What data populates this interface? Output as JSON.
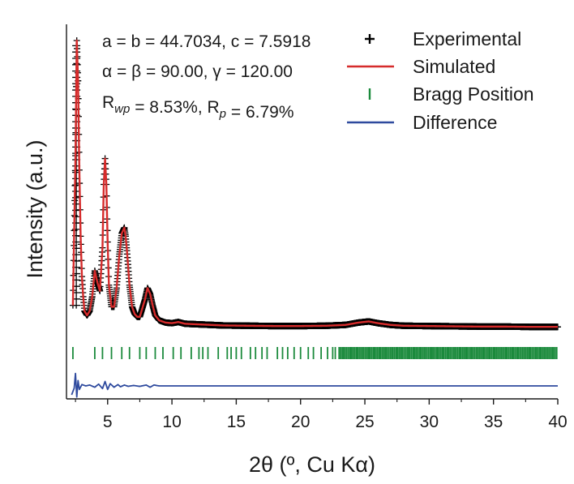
{
  "chart_data": {
    "type": "line",
    "xlabel": "2θ (º, Cu Kα)",
    "ylabel": "Intensity (a.u.)",
    "xlim": [
      1.8,
      40
    ],
    "xticks": [
      5,
      10,
      15,
      20,
      25,
      30,
      35,
      40
    ],
    "yticks": false,
    "grid": false,
    "legend": {
      "position": "top-right",
      "entries": [
        {
          "label": "Experimental",
          "marker": "plus",
          "color": "#000000"
        },
        {
          "label": "Simulated",
          "marker": "line",
          "color": "#d62b2b"
        },
        {
          "label": "Bragg Position",
          "marker": "vbar",
          "color": "#1b8a3c"
        },
        {
          "label": "Difference",
          "marker": "line",
          "color": "#2e4a9e"
        }
      ]
    },
    "parameters": {
      "line1": "a = b = 44.7034, c = 7.5918",
      "line2": "α = β = 90.00, γ = 120.00",
      "line3": "R_wp = 8.53%, R_p = 6.79%"
    },
    "series": [
      {
        "name": "Simulated",
        "color": "#d62b2b",
        "x": [
          2.3,
          2.5,
          2.6,
          2.7,
          2.8,
          2.9,
          3.0,
          3.1,
          3.2,
          3.4,
          3.6,
          3.8,
          4.0,
          4.2,
          4.4,
          4.6,
          4.7,
          4.8,
          4.9,
          5.0,
          5.1,
          5.3,
          5.5,
          5.7,
          5.9,
          6.1,
          6.3,
          6.4,
          6.5,
          6.7,
          6.9,
          7.1,
          7.3,
          7.5,
          7.7,
          7.9,
          8.1,
          8.3,
          8.5,
          8.7,
          9.0,
          9.5,
          10.0,
          10.5,
          11.0,
          12.0,
          13.0,
          14.0,
          16.0,
          18.0,
          20.0,
          22.0,
          23.5,
          24.5,
          25.3,
          26.0,
          27.0,
          28.0,
          30.0,
          32.0,
          34.0,
          36.0,
          38.0,
          40.0
        ],
        "y": [
          80,
          600,
          1000,
          860,
          550,
          320,
          180,
          110,
          60,
          45,
          60,
          110,
          200,
          160,
          130,
          280,
          500,
          590,
          500,
          300,
          150,
          75,
          75,
          140,
          250,
          330,
          350,
          320,
          270,
          150,
          75,
          50,
          40,
          40,
          70,
          100,
          140,
          120,
          80,
          45,
          28,
          20,
          18,
          22,
          16,
          14,
          12,
          10,
          9,
          8,
          8,
          9,
          12,
          20,
          24,
          18,
          12,
          9,
          8,
          7,
          6,
          6,
          5,
          5
        ]
      },
      {
        "name": "Experimental",
        "color": "#000000",
        "x": [
          2.3,
          2.5,
          2.6,
          2.7,
          2.8,
          2.9,
          3.0,
          3.1,
          3.2,
          3.4,
          3.6,
          3.8,
          4.0,
          4.2,
          4.4,
          4.6,
          4.7,
          4.8,
          4.9,
          5.0,
          5.1,
          5.3,
          5.5,
          5.7,
          5.9,
          6.1,
          6.3,
          6.4,
          6.5,
          6.7,
          6.9,
          7.1,
          7.3,
          7.5,
          7.7,
          7.9,
          8.1,
          8.3,
          8.5,
          8.7,
          9.0,
          9.5,
          10.0,
          10.5,
          11.0,
          12.0,
          13.0,
          14.0,
          16.0,
          18.0,
          20.0,
          22.0,
          23.5,
          24.5,
          25.3,
          26.0,
          27.0,
          28.0,
          30.0,
          32.0,
          34.0,
          36.0,
          38.0,
          40.0
        ],
        "y": [
          80,
          600,
          1000,
          860,
          550,
          320,
          180,
          110,
          60,
          45,
          60,
          110,
          200,
          160,
          130,
          280,
          500,
          590,
          500,
          300,
          150,
          75,
          75,
          140,
          250,
          330,
          350,
          320,
          270,
          150,
          75,
          50,
          40,
          40,
          70,
          100,
          140,
          120,
          80,
          45,
          28,
          20,
          18,
          22,
          16,
          14,
          12,
          10,
          9,
          8,
          8,
          9,
          12,
          20,
          24,
          18,
          12,
          9,
          8,
          7,
          6,
          6,
          5,
          5
        ]
      },
      {
        "name": "Difference",
        "color": "#2e4a9e",
        "x": [
          2.2,
          2.4,
          2.5,
          2.6,
          2.7,
          2.8,
          3.0,
          3.3,
          3.6,
          4.0,
          4.3,
          4.6,
          4.8,
          5.0,
          5.2,
          5.5,
          5.8,
          6.0,
          6.3,
          6.6,
          7.0,
          7.5,
          8.0,
          8.3,
          8.6,
          9.0,
          10.0,
          12.0,
          15.0,
          20.0,
          25.0,
          30.0,
          35.0,
          40.0
        ],
        "y": [
          -20,
          -5,
          28,
          -25,
          12,
          -8,
          3,
          0,
          2,
          -3,
          4,
          -6,
          10,
          -8,
          5,
          -3,
          3,
          -2,
          2,
          -1,
          1,
          -1,
          2,
          -3,
          2,
          0,
          0,
          0,
          0,
          0,
          0,
          0,
          0,
          0
        ]
      }
    ],
    "bragg_positions": [
      2.3,
      4.0,
      4.6,
      5.3,
      6.1,
      6.7,
      7.5,
      8.0,
      8.7,
      9.3,
      10.1,
      10.7,
      11.5,
      12.1,
      12.4,
      12.8,
      13.6,
      14.3,
      14.6,
      15.0,
      15.4,
      16.1,
      16.5,
      17.0,
      17.4,
      18.2,
      18.6,
      19.0,
      19.5,
      20.0,
      20.6,
      21.0,
      21.6,
      22.1,
      22.5,
      22.7,
      23.0,
      23.3,
      23.9,
      24.4,
      24.8,
      25.3,
      25.7,
      26.2,
      26.6,
      27.1,
      27.5,
      27.9,
      28.4,
      28.8,
      29.3,
      29.7,
      30.2,
      30.6,
      31.1,
      31.5,
      32.0,
      32.4,
      32.9,
      33.3,
      33.8,
      34.2,
      34.7,
      35.1,
      35.6,
      36.0,
      36.5,
      36.9,
      37.4,
      37.8,
      38.3,
      38.7,
      39.2,
      39.6
    ],
    "bragg_dense_start": 23.0,
    "bragg_dense_end": 40.0
  }
}
